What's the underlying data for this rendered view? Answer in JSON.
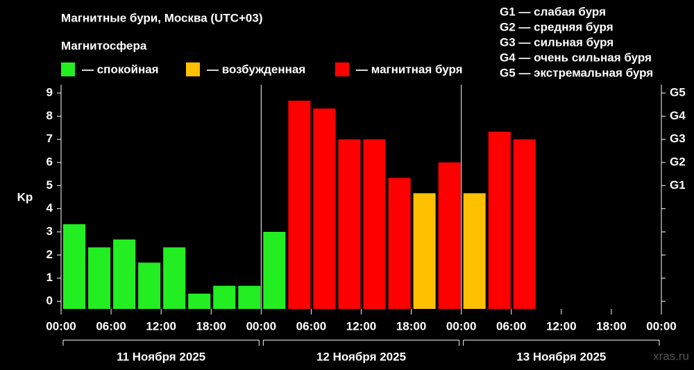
{
  "chart_data": {
    "type": "bar",
    "title": "Магнитные бури, Москва (UTC+03)",
    "legend_title": "Магнитосфера",
    "legend": [
      {
        "label": "— спокойная",
        "color": "#22ee22"
      },
      {
        "label": "— возбужденная",
        "color": "#ffc000"
      },
      {
        "label": "— магнитная буря",
        "color": "#ff0000"
      }
    ],
    "storm_scale": [
      "G1 — слабая буря",
      "G2 — средняя буря",
      "G3 — сильная буря",
      "G4 — очень сильная буря",
      "G5 — экстремальная буря"
    ],
    "ylabel": "Kp",
    "x": [
      0,
      3,
      6,
      9,
      12,
      15,
      18,
      21,
      24,
      27,
      30,
      33,
      36,
      39,
      42,
      45,
      48,
      51,
      54,
      57,
      60,
      63,
      66,
      69
    ],
    "xlim": [
      0,
      72
    ],
    "xticks": [
      {
        "value": 0,
        "label": "00:00"
      },
      {
        "value": 6,
        "label": "06:00"
      },
      {
        "value": 12,
        "label": "12:00"
      },
      {
        "value": 18,
        "label": "18:00"
      },
      {
        "value": 24,
        "label": "00:00"
      },
      {
        "value": 30,
        "label": "06:00"
      },
      {
        "value": 36,
        "label": "12:00"
      },
      {
        "value": 42,
        "label": "18:00"
      },
      {
        "value": 48,
        "label": "00:00"
      },
      {
        "value": 54,
        "label": "06:00"
      },
      {
        "value": 60,
        "label": "12:00"
      },
      {
        "value": 66,
        "label": "18:00"
      },
      {
        "value": 72,
        "label": "00:00"
      }
    ],
    "days": [
      {
        "label": "11 Ноября 2025",
        "start": 0,
        "end": 24
      },
      {
        "label": "12 Ноября 2025",
        "start": 24,
        "end": 48
      },
      {
        "label": "13 Ноября 2025",
        "start": 48,
        "end": 72
      }
    ],
    "series": [
      {
        "name": "Kp",
        "values": [
          3.33,
          2.33,
          2.67,
          1.67,
          2.33,
          0.33,
          0.67,
          0.67,
          3.0,
          8.67,
          8.33,
          7.0,
          7.0,
          5.33,
          4.67,
          6.0,
          4.67,
          7.33,
          7.0,
          null,
          null,
          null,
          null,
          null
        ],
        "colors": [
          "#22ee22",
          "#22ee22",
          "#22ee22",
          "#22ee22",
          "#22ee22",
          "#22ee22",
          "#22ee22",
          "#22ee22",
          "#22ee22",
          "#ff0000",
          "#ff0000",
          "#ff0000",
          "#ff0000",
          "#ff0000",
          "#ffc000",
          "#ff0000",
          "#ffc000",
          "#ff0000",
          "#ff0000",
          null,
          null,
          null,
          null,
          null
        ]
      }
    ],
    "ylim": [
      -0.33,
      9.36
    ],
    "yticks": [
      0,
      1,
      2,
      3,
      4,
      5,
      6,
      7,
      8,
      9
    ],
    "y2ticks": [
      {
        "value": 5,
        "label": "G1"
      },
      {
        "value": 6,
        "label": "G2"
      },
      {
        "value": 7,
        "label": "G3"
      },
      {
        "value": 8,
        "label": "G4"
      },
      {
        "value": 9,
        "label": "G5"
      }
    ],
    "watermark": "xras.ru"
  }
}
